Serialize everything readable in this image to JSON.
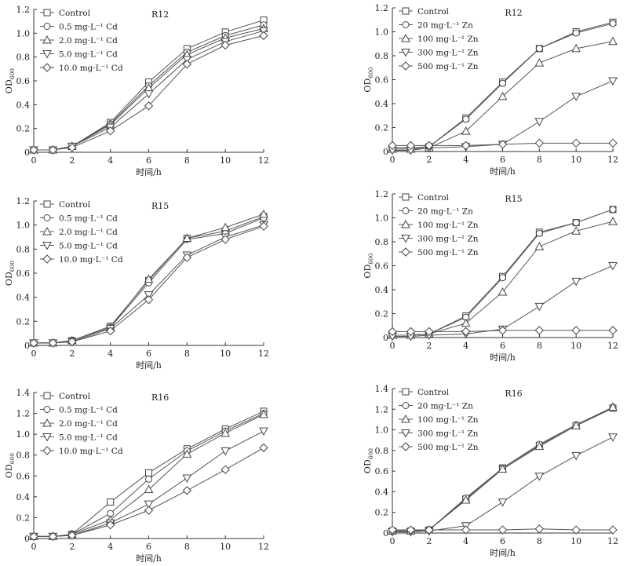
{
  "chart_data": [
    {
      "type": "line",
      "title": "R12",
      "xlabel": "时间/h",
      "ylabel": "OD600",
      "x": [
        0,
        1,
        2,
        4,
        6,
        8,
        10,
        12
      ],
      "xlim": [
        0,
        12
      ],
      "ylim": [
        0,
        1.2
      ],
      "xticks": [
        "0",
        "2",
        "4",
        "6",
        "8",
        "10",
        "12"
      ],
      "yticks": [
        "0",
        "0.2",
        "0.4",
        "0.6",
        "0.8",
        "1.0",
        "1.2"
      ],
      "legend_position": "top-left",
      "series": [
        {
          "name": "Control",
          "marker": "square",
          "values": [
            0.02,
            0.02,
            0.05,
            0.25,
            0.59,
            0.87,
            1.01,
            1.11
          ]
        },
        {
          "name": "0.5 mg·L⁻¹ Cd",
          "marker": "circle",
          "values": [
            0.02,
            0.02,
            0.05,
            0.24,
            0.56,
            0.84,
            0.98,
            1.07
          ]
        },
        {
          "name": "2.0 mg·L⁻¹ Cd",
          "marker": "triangle-up",
          "values": [
            0.02,
            0.02,
            0.05,
            0.23,
            0.54,
            0.82,
            0.96,
            1.04
          ]
        },
        {
          "name": "5.0 mg·L⁻¹ Cd",
          "marker": "triangle-down",
          "values": [
            0.02,
            0.02,
            0.05,
            0.21,
            0.49,
            0.78,
            0.93,
            1.02
          ]
        },
        {
          "name": "10.0 mg·L⁻¹ Cd",
          "marker": "diamond",
          "values": [
            0.02,
            0.02,
            0.04,
            0.18,
            0.39,
            0.74,
            0.9,
            0.98
          ]
        }
      ]
    },
    {
      "type": "line",
      "title": "R12",
      "xlabel": "时间/h",
      "ylabel": "OD600",
      "x": [
        0,
        1,
        2,
        4,
        6,
        8,
        10,
        12
      ],
      "xlim": [
        0,
        12
      ],
      "ylim": [
        0,
        1.2
      ],
      "xticks": [
        "0",
        "2",
        "4",
        "6",
        "8",
        "10",
        "12"
      ],
      "yticks": [
        "0",
        "0.2",
        "0.4",
        "0.6",
        "0.8",
        "1.0",
        "1.2"
      ],
      "legend_position": "top-left",
      "series": [
        {
          "name": "Control",
          "marker": "square",
          "values": [
            0.03,
            0.03,
            0.04,
            0.28,
            0.58,
            0.86,
            1.0,
            1.08
          ]
        },
        {
          "name": "20 mg·L⁻¹ Zn",
          "marker": "circle",
          "values": [
            0.03,
            0.03,
            0.04,
            0.27,
            0.57,
            0.86,
            0.99,
            1.07
          ]
        },
        {
          "name": "100 mg·L⁻¹ Zn",
          "marker": "triangle-up",
          "values": [
            0.02,
            0.02,
            0.03,
            0.17,
            0.46,
            0.74,
            0.86,
            0.92
          ]
        },
        {
          "name": "300 mg·L⁻¹ Zn",
          "marker": "triangle-down",
          "values": [
            0.01,
            0.01,
            0.03,
            0.04,
            0.06,
            0.25,
            0.46,
            0.59
          ]
        },
        {
          "name": "500 mg·L⁻¹ Zn",
          "marker": "diamond",
          "values": [
            0.05,
            0.05,
            0.05,
            0.05,
            0.06,
            0.07,
            0.07,
            0.07
          ]
        }
      ]
    },
    {
      "type": "line",
      "title": "R15",
      "xlabel": "时间/h",
      "ylabel": "OD600",
      "x": [
        0,
        1,
        2,
        4,
        6,
        8,
        10,
        12
      ],
      "xlim": [
        0,
        12
      ],
      "ylim": [
        0,
        1.2
      ],
      "xticks": [
        "0",
        "2",
        "4",
        "6",
        "8",
        "10",
        "12"
      ],
      "yticks": [
        "0",
        "0.2",
        "0.4",
        "0.6",
        "0.8",
        "1.0",
        "1.2"
      ],
      "legend_position": "top-left",
      "series": [
        {
          "name": "Control",
          "marker": "square",
          "values": [
            0.02,
            0.02,
            0.04,
            0.16,
            0.54,
            0.89,
            0.95,
            1.07
          ]
        },
        {
          "name": "0.5 mg·L⁻¹ Cd",
          "marker": "circle",
          "values": [
            0.02,
            0.02,
            0.04,
            0.15,
            0.52,
            0.88,
            0.93,
            1.06
          ]
        },
        {
          "name": "2.0 mg·L⁻¹ Cd",
          "marker": "triangle-up",
          "values": [
            0.02,
            0.02,
            0.04,
            0.15,
            0.55,
            0.89,
            0.98,
            1.09
          ]
        },
        {
          "name": "5.0 mg·L⁻¹ Cd",
          "marker": "triangle-down",
          "values": [
            0.02,
            0.02,
            0.03,
            0.14,
            0.42,
            0.75,
            0.9,
            1.0
          ]
        },
        {
          "name": "10.0 mg·L⁻¹ Cd",
          "marker": "diamond",
          "values": [
            0.02,
            0.02,
            0.03,
            0.12,
            0.38,
            0.73,
            0.88,
            0.99
          ]
        }
      ]
    },
    {
      "type": "line",
      "title": "R15",
      "xlabel": "时间/h",
      "ylabel": "OD600",
      "x": [
        0,
        1,
        2,
        4,
        6,
        8,
        10,
        12
      ],
      "xlim": [
        0,
        12
      ],
      "ylim": [
        0,
        1.2
      ],
      "xticks": [
        "0",
        "2",
        "4",
        "6",
        "8",
        "10",
        "12"
      ],
      "yticks": [
        "0",
        "0.2",
        "0.4",
        "0.6",
        "0.8",
        "1.0",
        "1.2"
      ],
      "legend_position": "top-left",
      "series": [
        {
          "name": "Control",
          "marker": "square",
          "values": [
            0.02,
            0.02,
            0.03,
            0.18,
            0.51,
            0.88,
            0.96,
            1.07
          ]
        },
        {
          "name": "20 mg·L⁻¹ Zn",
          "marker": "circle",
          "values": [
            0.02,
            0.02,
            0.03,
            0.17,
            0.5,
            0.87,
            0.96,
            1.07
          ]
        },
        {
          "name": "100 mg·L⁻¹ Zn",
          "marker": "triangle-up",
          "values": [
            0.02,
            0.02,
            0.03,
            0.12,
            0.38,
            0.76,
            0.89,
            0.97
          ]
        },
        {
          "name": "300 mg·L⁻¹ Zn",
          "marker": "triangle-down",
          "values": [
            0.01,
            0.01,
            0.02,
            0.03,
            0.07,
            0.26,
            0.47,
            0.6
          ]
        },
        {
          "name": "500 mg·L⁻¹ Zn",
          "marker": "diamond",
          "values": [
            0.05,
            0.05,
            0.05,
            0.05,
            0.06,
            0.06,
            0.06,
            0.06
          ]
        }
      ]
    },
    {
      "type": "line",
      "title": "R16",
      "xlabel": "时间/h",
      "ylabel": "OD600",
      "x": [
        0,
        1,
        2,
        4,
        6,
        8,
        10,
        12
      ],
      "xlim": [
        0,
        12
      ],
      "ylim": [
        0,
        1.4
      ],
      "xticks": [
        "0",
        "2",
        "4",
        "6",
        "8",
        "10",
        "12"
      ],
      "yticks": [
        "0",
        "0.2",
        "0.4",
        "0.6",
        "0.8",
        "1.0",
        "1.2",
        "1.4"
      ],
      "legend_position": "top-left",
      "series": [
        {
          "name": "Control",
          "marker": "square",
          "values": [
            0.02,
            0.02,
            0.04,
            0.35,
            0.63,
            0.86,
            1.05,
            1.22
          ]
        },
        {
          "name": "0.5 mg·L⁻¹ Cd",
          "marker": "circle",
          "values": [
            0.02,
            0.02,
            0.04,
            0.24,
            0.57,
            0.84,
            1.03,
            1.2
          ]
        },
        {
          "name": "2.0 mg·L⁻¹ Cd",
          "marker": "triangle-up",
          "values": [
            0.02,
            0.02,
            0.04,
            0.18,
            0.47,
            0.81,
            1.01,
            1.19
          ]
        },
        {
          "name": "5.0 mg·L⁻¹ Cd",
          "marker": "triangle-down",
          "values": [
            0.02,
            0.02,
            0.03,
            0.15,
            0.33,
            0.58,
            0.84,
            1.03
          ]
        },
        {
          "name": "10.0 mg·L⁻¹ Cd",
          "marker": "diamond",
          "values": [
            0.02,
            0.02,
            0.03,
            0.13,
            0.27,
            0.46,
            0.66,
            0.87
          ]
        }
      ]
    },
    {
      "type": "line",
      "title": "R16",
      "xlabel": "时间/h",
      "ylabel": "OD600",
      "x": [
        0,
        1,
        2,
        4,
        6,
        8,
        10,
        12
      ],
      "xlim": [
        0,
        12
      ],
      "ylim": [
        0,
        1.4
      ],
      "xticks": [
        "0",
        "2",
        "4",
        "6",
        "8",
        "10",
        "12"
      ],
      "yticks": [
        "0",
        "0.2",
        "0.4",
        "0.6",
        "0.8",
        "1.0",
        "1.2",
        "1.4"
      ],
      "legend_position": "top-left",
      "series": [
        {
          "name": "Control",
          "marker": "square",
          "values": [
            0.02,
            0.02,
            0.03,
            0.33,
            0.63,
            0.85,
            1.04,
            1.21
          ]
        },
        {
          "name": "20 mg·L⁻¹ Zn",
          "marker": "circle",
          "values": [
            0.02,
            0.02,
            0.03,
            0.34,
            0.63,
            0.86,
            1.05,
            1.22
          ]
        },
        {
          "name": "100 mg·L⁻¹ Zn",
          "marker": "triangle-up",
          "values": [
            0.02,
            0.02,
            0.03,
            0.32,
            0.62,
            0.84,
            1.04,
            1.22
          ]
        },
        {
          "name": "300 mg·L⁻¹ Zn",
          "marker": "triangle-down",
          "values": [
            0.01,
            0.01,
            0.02,
            0.07,
            0.3,
            0.55,
            0.75,
            0.93
          ]
        },
        {
          "name": "500 mg·L⁻¹ Zn",
          "marker": "diamond",
          "values": [
            0.03,
            0.03,
            0.03,
            0.03,
            0.03,
            0.04,
            0.03,
            0.03
          ]
        }
      ]
    }
  ]
}
